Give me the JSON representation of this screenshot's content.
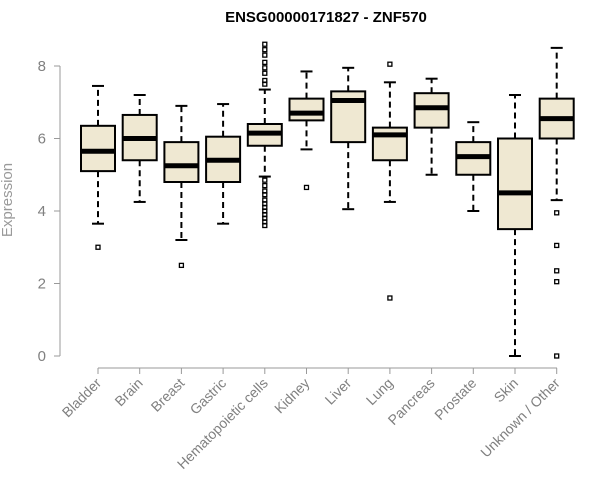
{
  "chart_data": {
    "type": "boxplot",
    "title": "ENSG00000171827 - ZNF570",
    "xlabel": "",
    "ylabel": "Expression",
    "ylim": [
      0,
      8.6
    ],
    "yticks": [
      "0",
      "2",
      "4",
      "6",
      "8"
    ],
    "grid": false,
    "colors": {
      "box_fill": "#efe8d2",
      "box_stroke": "#000000",
      "axis": "#9a9a9a",
      "tick_text": "#808080"
    },
    "categories": [
      "Bladder",
      "Brain",
      "Breast",
      "Gastric",
      "Hematopoietic cells",
      "Kidney",
      "Liver",
      "Lung",
      "Pancreas",
      "Prostate",
      "Skin",
      "Unknown / Other"
    ],
    "boxes": [
      {
        "min": 3.65,
        "q1": 5.1,
        "median": 5.65,
        "q3": 6.35,
        "max": 7.45,
        "outliers": [
          3.0
        ]
      },
      {
        "min": 4.25,
        "q1": 5.4,
        "median": 6.0,
        "q3": 6.65,
        "max": 7.2,
        "outliers": []
      },
      {
        "min": 3.2,
        "q1": 4.8,
        "median": 5.25,
        "q3": 5.9,
        "max": 6.9,
        "outliers": [
          2.5
        ]
      },
      {
        "min": 3.65,
        "q1": 4.8,
        "median": 5.4,
        "q3": 6.05,
        "max": 6.95,
        "outliers": []
      },
      {
        "min": 4.95,
        "q1": 5.8,
        "median": 6.15,
        "q3": 6.4,
        "max": 7.35,
        "outliers": [
          8.6,
          8.45,
          8.3,
          8.1,
          7.95,
          7.8,
          7.6,
          7.5,
          4.85,
          4.7,
          4.55,
          4.45,
          4.3,
          4.2,
          4.1,
          4.0,
          3.9,
          3.8,
          3.7,
          3.6
        ]
      },
      {
        "min": 5.7,
        "q1": 6.5,
        "median": 6.7,
        "q3": 7.1,
        "max": 7.85,
        "outliers": [
          4.65
        ]
      },
      {
        "min": 4.05,
        "q1": 5.9,
        "median": 7.05,
        "q3": 7.3,
        "max": 7.95,
        "outliers": []
      },
      {
        "min": 4.25,
        "q1": 5.4,
        "median": 6.1,
        "q3": 6.3,
        "max": 7.55,
        "outliers": [
          8.05,
          1.6
        ]
      },
      {
        "min": 5.0,
        "q1": 6.3,
        "median": 6.85,
        "q3": 7.25,
        "max": 7.65,
        "outliers": []
      },
      {
        "min": 4.0,
        "q1": 5.0,
        "median": 5.5,
        "q3": 5.9,
        "max": 6.45,
        "outliers": []
      },
      {
        "min": 0.0,
        "q1": 3.5,
        "median": 4.5,
        "q3": 6.0,
        "max": 7.2,
        "outliers": []
      },
      {
        "min": 4.3,
        "q1": 6.0,
        "median": 6.55,
        "q3": 7.1,
        "max": 8.5,
        "outliers": [
          3.95,
          3.05,
          2.35,
          2.05,
          0.0
        ]
      }
    ]
  }
}
